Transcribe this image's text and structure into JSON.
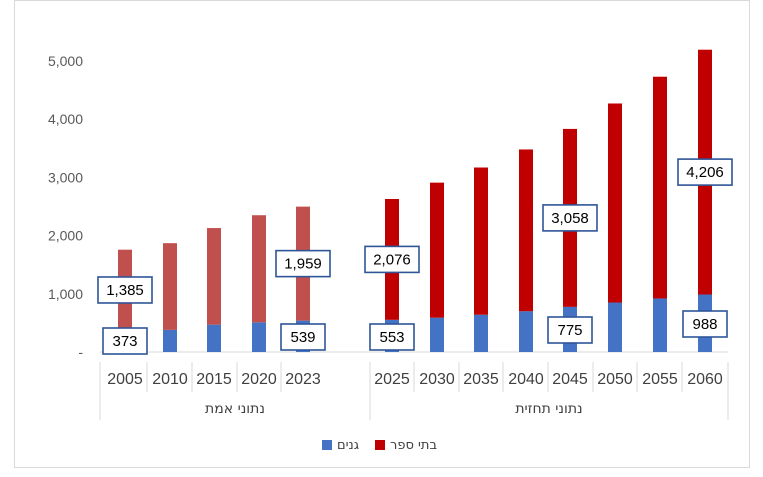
{
  "chart_data": {
    "type": "bar",
    "stacked": true,
    "title": "",
    "xlabel": "",
    "ylabel": "",
    "ylim": [
      0,
      5500
    ],
    "yticks": [
      "-",
      "1,000",
      "2,000",
      "3,000",
      "4,000",
      "5,000"
    ],
    "ytick_values": [
      0,
      1000,
      2000,
      3000,
      4000,
      5000
    ],
    "grid": true,
    "legend_position": "bottom",
    "categories": [
      "2005",
      "2010",
      "2015",
      "2020",
      "2023",
      "2025",
      "2030",
      "2035",
      "2040",
      "2045",
      "2050",
      "2055",
      "2060"
    ],
    "groups": [
      {
        "label": "נתוני אמת",
        "categories": [
          "2005",
          "2010",
          "2015",
          "2020",
          "2023"
        ]
      },
      {
        "label": "נתוני תחזית",
        "categories": [
          "2025",
          "2030",
          "2035",
          "2040",
          "2045",
          "2050",
          "2055",
          "2060"
        ]
      }
    ],
    "series": [
      {
        "name": "גנים",
        "color": "#4472c4",
        "values": [
          373,
          380,
          470,
          510,
          539,
          553,
          590,
          640,
          700,
          775,
          850,
          920,
          988
        ]
      },
      {
        "name": "בתי ספר",
        "colors": [
          "#c0504d",
          "#c0504d",
          "#c0504d",
          "#c0504d",
          "#c0504d",
          "#c00000",
          "#c00000",
          "#c00000",
          "#c00000",
          "#c00000",
          "#c00000",
          "#c00000",
          "#c00000"
        ],
        "values": [
          1385,
          1490,
          1660,
          1840,
          1959,
          2076,
          2320,
          2530,
          2780,
          3058,
          3420,
          3810,
          4206
        ]
      }
    ],
    "data_labels": [
      {
        "series": 0,
        "category": "2005",
        "text": "373"
      },
      {
        "series": 1,
        "category": "2005",
        "text": "1,385"
      },
      {
        "series": 0,
        "category": "2023",
        "text": "539"
      },
      {
        "series": 1,
        "category": "2023",
        "text": "1,959"
      },
      {
        "series": 0,
        "category": "2025",
        "text": "553"
      },
      {
        "series": 1,
        "category": "2025",
        "text": "2,076"
      },
      {
        "series": 0,
        "category": "2045",
        "text": "775"
      },
      {
        "series": 1,
        "category": "2045",
        "text": "3,058"
      },
      {
        "series": 0,
        "category": "2060",
        "text": "988"
      },
      {
        "series": 1,
        "category": "2060",
        "text": "4,206"
      }
    ],
    "legend": [
      {
        "name": "גנים",
        "color": "#4472c4"
      },
      {
        "name": "בתי ספר",
        "color": "#c00000"
      }
    ]
  }
}
